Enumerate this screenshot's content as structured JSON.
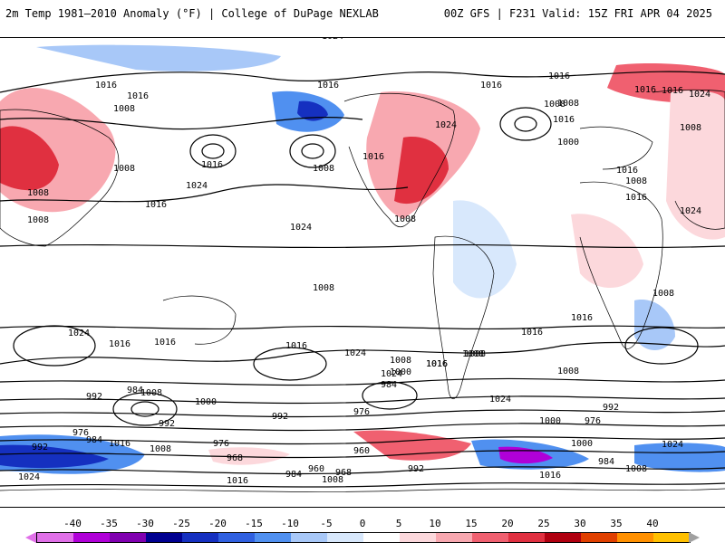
{
  "header": {
    "left_title": "2m Temp 1981–2010 Anomaly (°F) | College of DuPage NEXLAB",
    "right_title": "00Z GFS | F231 Valid: 15Z FRI APR 04 2025"
  },
  "colorbar": {
    "ticks": [
      "-40",
      "-35",
      "-30",
      "-25",
      "-20",
      "-15",
      "-10",
      "-5",
      "0",
      "5",
      "10",
      "15",
      "20",
      "25",
      "30",
      "35",
      "40"
    ],
    "colors": [
      "#e070e8",
      "#b000d8",
      "#8000b0",
      "#000090",
      "#1530c0",
      "#3060e0",
      "#5090f0",
      "#a8c8f8",
      "#d8e8fc",
      "#ffffff",
      "#fcd8dc",
      "#f8a8b0",
      "#f06070",
      "#e03040",
      "#b00010",
      "#e04000",
      "#ff9000",
      "#ffc000",
      "#a0a0a0"
    ]
  },
  "map_labels": [
    {
      "text": "1024"
    },
    {
      "text": "1016"
    },
    {
      "text": "1016"
    },
    {
      "text": "1008"
    },
    {
      "text": "1016"
    },
    {
      "text": "1008"
    },
    {
      "text": "1016"
    },
    {
      "text": "1008"
    },
    {
      "text": "1016"
    },
    {
      "text": "1024"
    },
    {
      "text": "1016"
    },
    {
      "text": "1008"
    },
    {
      "text": "1008"
    },
    {
      "text": "1016"
    },
    {
      "text": "1008"
    },
    {
      "text": "1024"
    },
    {
      "text": "1016"
    },
    {
      "text": "1024"
    },
    {
      "text": "1008"
    },
    {
      "text": "1016"
    },
    {
      "text": "1016"
    },
    {
      "text": "1016"
    },
    {
      "text": "1008"
    },
    {
      "text": "1024"
    },
    {
      "text": "1000"
    },
    {
      "text": "1008"
    },
    {
      "text": "1016"
    },
    {
      "text": "1008"
    },
    {
      "text": "1016"
    },
    {
      "text": "1024"
    },
    {
      "text": "1016"
    },
    {
      "text": "1008"
    },
    {
      "text": "1008"
    },
    {
      "text": "1024"
    },
    {
      "text": "1016"
    },
    {
      "text": "1016"
    },
    {
      "text": "1016"
    },
    {
      "text": "1024"
    },
    {
      "text": "1008"
    },
    {
      "text": "1000"
    },
    {
      "text": "1016"
    },
    {
      "text": "1008"
    },
    {
      "text": "1008"
    },
    {
      "text": "984"
    },
    {
      "text": "1000"
    },
    {
      "text": "992"
    },
    {
      "text": "976"
    },
    {
      "text": "984"
    },
    {
      "text": "992"
    },
    {
      "text": "1000"
    },
    {
      "text": "984"
    },
    {
      "text": "976"
    },
    {
      "text": "976"
    },
    {
      "text": "992"
    },
    {
      "text": "984"
    },
    {
      "text": "976"
    },
    {
      "text": "992"
    },
    {
      "text": "1016"
    },
    {
      "text": "1008"
    },
    {
      "text": "968"
    },
    {
      "text": "1024"
    },
    {
      "text": "1016"
    },
    {
      "text": "984"
    },
    {
      "text": "960"
    },
    {
      "text": "968"
    },
    {
      "text": "1008"
    },
    {
      "text": "960"
    },
    {
      "text": "992"
    },
    {
      "text": "1024"
    },
    {
      "text": "1016"
    },
    {
      "text": "1008"
    },
    {
      "text": "992"
    },
    {
      "text": "1000"
    },
    {
      "text": "1024"
    },
    {
      "text": "1016"
    },
    {
      "text": "1008"
    },
    {
      "text": "1008"
    },
    {
      "text": "1024"
    },
    {
      "text": "1016"
    }
  ]
}
